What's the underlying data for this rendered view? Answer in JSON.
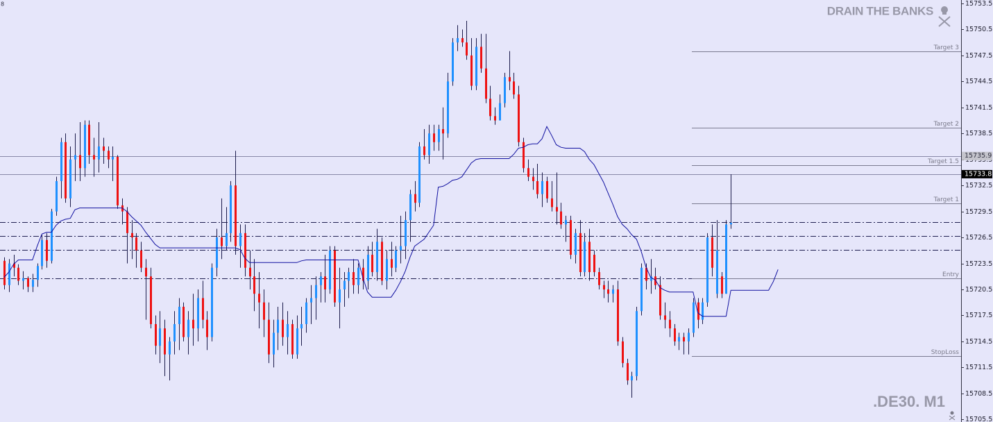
{
  "chart_data": {
    "type": "candlestick",
    "corner_label": "8",
    "watermark": "DRAIN THE BANKS",
    "symbol": ".DE30. M1",
    "ylim": [
      15705.2,
      15753.9
    ],
    "yticks": [
      15753.5,
      15750.5,
      15747.5,
      15744.5,
      15741.5,
      15738.5,
      15735.5,
      15732.5,
      15729.5,
      15726.5,
      15723.5,
      15720.5,
      15717.5,
      15714.5,
      15711.5,
      15708.5,
      15705.5
    ],
    "up_color": "#1e90ff",
    "down_color": "#ee1111",
    "wick_color": "#1a1a4a",
    "ohlc": [
      [
        15723.8,
        15724.2,
        15720.5,
        15721.0
      ],
      [
        15721.0,
        15724.0,
        15720.2,
        15723.5
      ],
      [
        15723.5,
        15724.5,
        15722.0,
        15723.0
      ],
      [
        15723.0,
        15723.4,
        15721.0,
        15721.5
      ],
      [
        15721.5,
        15722.6,
        15720.5,
        15721.8
      ],
      [
        15721.8,
        15722.0,
        15720.2,
        15720.8
      ],
      [
        15720.8,
        15722.3,
        15720.2,
        15721.6
      ],
      [
        15721.6,
        15723.5,
        15720.8,
        15723.2
      ],
      [
        15723.2,
        15726.8,
        15722.8,
        15726.2
      ],
      [
        15726.2,
        15727.0,
        15723.0,
        15723.8
      ],
      [
        15723.8,
        15729.8,
        15723.5,
        15729.5
      ],
      [
        15729.5,
        15733.5,
        15729.0,
        15733.0
      ],
      [
        15733.0,
        15738.0,
        15731.0,
        15737.5
      ],
      [
        15737.5,
        15738.5,
        15730.5,
        15731.0
      ],
      [
        15731.0,
        15737.0,
        15730.0,
        15735.5
      ],
      [
        15735.5,
        15738.5,
        15733.0,
        15736.0
      ],
      [
        15736.0,
        15739.8,
        15733.0,
        15734.5
      ],
      [
        15734.5,
        15740.0,
        15733.5,
        15739.5
      ],
      [
        15739.5,
        15740.0,
        15735.0,
        15736.0
      ],
      [
        15736.0,
        15738.0,
        15733.5,
        15735.5
      ],
      [
        15735.5,
        15739.8,
        15734.0,
        15737.0
      ],
      [
        15737.0,
        15738.0,
        15735.0,
        15736.5
      ],
      [
        15736.5,
        15737.0,
        15734.5,
        15735.5
      ],
      [
        15735.5,
        15737.0,
        15733.0,
        15735.8
      ],
      [
        15735.8,
        15736.0,
        15729.8,
        15730.2
      ],
      [
        15730.2,
        15731.0,
        15728.0,
        15729.5
      ],
      [
        15729.5,
        15730.0,
        15723.5,
        15727.0
      ],
      [
        15727.0,
        15728.5,
        15724.0,
        15726.5
      ],
      [
        15726.5,
        15727.0,
        15723.0,
        15725.0
      ],
      [
        15725.0,
        15726.0,
        15722.5,
        15723.0
      ],
      [
        15723.0,
        15724.0,
        15717.0,
        15722.0
      ],
      [
        15722.0,
        15723.0,
        15716.0,
        15716.5
      ],
      [
        15716.5,
        15717.5,
        15713.0,
        15714.0
      ],
      [
        15714.0,
        15718.0,
        15712.0,
        15716.0
      ],
      [
        15716.0,
        15717.0,
        15710.5,
        15713.0
      ],
      [
        15713.0,
        15715.0,
        15710.0,
        15714.5
      ],
      [
        15714.5,
        15718.0,
        15713.0,
        15716.5
      ],
      [
        15716.5,
        15719.5,
        15713.5,
        15718.5
      ],
      [
        15718.5,
        15719.0,
        15714.5,
        15715.0
      ],
      [
        15715.0,
        15718.0,
        15713.0,
        15717.0
      ],
      [
        15717.0,
        15720.0,
        15714.0,
        15716.0
      ],
      [
        15716.0,
        15720.5,
        15714.5,
        15719.5
      ],
      [
        15719.5,
        15721.5,
        15716.0,
        15717.0
      ],
      [
        15717.0,
        15718.0,
        15713.5,
        15715.0
      ],
      [
        15715.0,
        15723.5,
        15714.5,
        15723.0
      ],
      [
        15723.0,
        15727.5,
        15722.0,
        15726.5
      ],
      [
        15726.5,
        15731.0,
        15724.0,
        15725.5
      ],
      [
        15725.5,
        15730.0,
        15725.0,
        15727.0
      ],
      [
        15727.0,
        15733.0,
        15726.0,
        15732.5
      ],
      [
        15732.5,
        15736.5,
        15724.5,
        15725.5
      ],
      [
        15725.5,
        15728.0,
        15723.0,
        15727.0
      ],
      [
        15727.0,
        15728.0,
        15722.0,
        15723.0
      ],
      [
        15723.0,
        15725.0,
        15720.5,
        15722.0
      ],
      [
        15722.0,
        15724.0,
        15718.0,
        15720.0
      ],
      [
        15720.0,
        15722.5,
        15716.0,
        15719.0
      ],
      [
        15719.0,
        15720.5,
        15715.0,
        15717.0
      ],
      [
        15717.0,
        15719.0,
        15712.0,
        15713.0
      ],
      [
        15713.0,
        15717.0,
        15711.5,
        15715.5
      ],
      [
        15715.5,
        15718.5,
        15713.5,
        15717.0
      ],
      [
        15717.0,
        15719.0,
        15714.0,
        15715.0
      ],
      [
        15715.0,
        15718.0,
        15713.0,
        15716.5
      ],
      [
        15716.5,
        15717.0,
        15712.5,
        15713.0
      ],
      [
        15713.0,
        15717.5,
        15712.5,
        15716.0
      ],
      [
        15716.0,
        15718.5,
        15714.0,
        15716.5
      ],
      [
        15716.5,
        15719.5,
        15715.5,
        15719.0
      ],
      [
        15719.0,
        15721.0,
        15716.5,
        15719.5
      ],
      [
        15719.5,
        15722.0,
        15717.0,
        15721.0
      ],
      [
        15721.0,
        15722.5,
        15719.0,
        15722.0
      ],
      [
        15722.0,
        15724.5,
        15719.0,
        15720.5
      ],
      [
        15720.5,
        15725.5,
        15720.0,
        15725.0
      ],
      [
        15725.0,
        15725.5,
        15718.5,
        15719.0
      ],
      [
        15719.0,
        15723.0,
        15716.0,
        15720.5
      ],
      [
        15720.5,
        15722.5,
        15718.5,
        15721.5
      ],
      [
        15721.5,
        15723.0,
        15719.5,
        15722.5
      ],
      [
        15722.5,
        15724.0,
        15720.0,
        15721.0
      ],
      [
        15721.0,
        15723.5,
        15720.0,
        15723.0
      ],
      [
        15723.0,
        15724.0,
        15720.5,
        15721.5
      ],
      [
        15721.5,
        15725.5,
        15720.5,
        15724.5
      ],
      [
        15724.5,
        15726.0,
        15722.0,
        15722.5
      ],
      [
        15722.5,
        15727.5,
        15721.5,
        15726.0
      ],
      [
        15726.0,
        15726.5,
        15721.0,
        15721.5
      ],
      [
        15721.5,
        15725.0,
        15720.5,
        15724.0
      ],
      [
        15724.0,
        15726.0,
        15722.0,
        15723.0
      ],
      [
        15723.0,
        15725.5,
        15722.5,
        15725.0
      ],
      [
        15725.0,
        15729.0,
        15723.5,
        15725.5
      ],
      [
        15725.5,
        15729.5,
        15724.0,
        15728.5
      ],
      [
        15728.5,
        15732.0,
        15726.0,
        15731.5
      ],
      [
        15731.5,
        15733.0,
        15729.5,
        15730.5
      ],
      [
        15730.5,
        15737.5,
        15730.0,
        15737.0
      ],
      [
        15737.0,
        15739.0,
        15735.5,
        15736.0
      ],
      [
        15736.0,
        15739.5,
        15735.0,
        15738.5
      ],
      [
        15738.5,
        15739.5,
        15736.5,
        15737.5
      ],
      [
        15737.5,
        15739.5,
        15736.5,
        15739.0
      ],
      [
        15739.0,
        15741.5,
        15735.5,
        15738.5
      ],
      [
        15738.5,
        15745.5,
        15738.0,
        15744.5
      ],
      [
        15744.5,
        15749.5,
        15744.0,
        15749.0
      ],
      [
        15749.0,
        15751.0,
        15748.0,
        15749.5
      ],
      [
        15749.5,
        15750.5,
        15748.5,
        15749.0
      ],
      [
        15749.0,
        15751.5,
        15747.0,
        15747.5
      ],
      [
        15747.5,
        15749.5,
        15743.5,
        15744.0
      ],
      [
        15744.0,
        15749.5,
        15743.5,
        15748.5
      ],
      [
        15748.5,
        15750.0,
        15745.5,
        15746.0
      ],
      [
        15746.0,
        15750.0,
        15742.0,
        15742.5
      ],
      [
        15742.5,
        15744.0,
        15740.0,
        15740.5
      ],
      [
        15740.5,
        15741.5,
        15739.5,
        15740.0
      ],
      [
        15740.0,
        15743.0,
        15740.0,
        15742.0
      ],
      [
        15742.0,
        15745.5,
        15741.5,
        15745.0
      ],
      [
        15745.0,
        15748.0,
        15743.5,
        15744.5
      ],
      [
        15744.5,
        15745.5,
        15742.5,
        15743.0
      ],
      [
        15743.0,
        15744.0,
        15737.0,
        15737.5
      ],
      [
        15737.5,
        15738.0,
        15734.0,
        15734.5
      ],
      [
        15734.5,
        15735.5,
        15733.0,
        15733.5
      ],
      [
        15733.5,
        15734.5,
        15732.0,
        15733.0
      ],
      [
        15733.0,
        15735.0,
        15731.0,
        15731.5
      ],
      [
        15731.5,
        15734.0,
        15730.0,
        15733.0
      ],
      [
        15733.0,
        15733.5,
        15730.5,
        15731.0
      ],
      [
        15731.0,
        15733.0,
        15729.5,
        15730.0
      ],
      [
        15730.0,
        15734.0,
        15728.0,
        15729.5
      ],
      [
        15729.5,
        15730.5,
        15727.5,
        15728.0
      ],
      [
        15728.0,
        15729.0,
        15726.0,
        15728.5
      ],
      [
        15728.5,
        15729.0,
        15724.0,
        15724.5
      ],
      [
        15724.5,
        15727.5,
        15723.5,
        15727.0
      ],
      [
        15727.0,
        15728.5,
        15722.0,
        15722.5
      ],
      [
        15722.5,
        15727.0,
        15722.0,
        15726.0
      ],
      [
        15726.0,
        15727.5,
        15721.5,
        15722.5
      ],
      [
        15724.5,
        15725.0,
        15722.0,
        15722.5
      ],
      [
        15722.5,
        15723.0,
        15720.5,
        15721.0
      ],
      [
        15721.0,
        15721.5,
        15719.5,
        15720.5
      ],
      [
        15720.5,
        15721.5,
        15719.0,
        15720.0
      ],
      [
        15720.0,
        15721.0,
        15719.0,
        15720.5
      ],
      [
        15720.5,
        15721.5,
        15714.0,
        15714.5
      ],
      [
        15714.5,
        15715.0,
        15711.5,
        15712.0
      ],
      [
        15712.0,
        15712.5,
        15709.5,
        15710.0
      ],
      [
        15710.0,
        15711.0,
        15708.0,
        15710.5
      ],
      [
        15710.5,
        15718.5,
        15710.0,
        15718.0
      ],
      [
        15718.0,
        15723.5,
        15717.5,
        15723.0
      ],
      [
        15723.0,
        15723.5,
        15720.5,
        15721.5
      ],
      [
        15721.5,
        15724.0,
        15720.0,
        15722.0
      ],
      [
        15722.0,
        15723.0,
        15720.5,
        15721.0
      ],
      [
        15721.0,
        15722.0,
        15717.0,
        15717.5
      ],
      [
        15717.5,
        15719.0,
        15716.0,
        15717.0
      ],
      [
        15717.0,
        15718.0,
        15715.0,
        15716.0
      ],
      [
        15716.0,
        15716.5,
        15714.0,
        15714.5
      ],
      [
        15714.5,
        15715.5,
        15713.5,
        15715.0
      ],
      [
        15715.0,
        15715.5,
        15713.0,
        15714.5
      ],
      [
        15714.5,
        15716.0,
        15713.0,
        15715.5
      ],
      [
        15715.5,
        15719.5,
        15715.0,
        15719.0
      ],
      [
        15719.0,
        15719.5,
        15716.0,
        15717.0
      ],
      [
        15717.0,
        15719.5,
        15716.5,
        15719.0
      ],
      [
        15719.0,
        15727.0,
        15718.5,
        15726.5
      ],
      [
        15726.5,
        15728.0,
        15722.0,
        15723.0
      ],
      [
        15720.0,
        15728.5,
        15719.5,
        15725.0
      ],
      [
        15722.0,
        15722.5,
        15719.5,
        15720.0
      ],
      [
        15720.0,
        15728.5,
        15720.0,
        15728.0
      ],
      [
        15728.0,
        15733.8,
        15727.5,
        15728.2
      ]
    ],
    "line": {
      "color": "#1010a0",
      "values": [
        15721.9,
        15722.5,
        15723.4,
        15723.9,
        15723.9,
        15723.9,
        15723.9,
        15725.5,
        15726.9,
        15727.1,
        15727.1,
        15727.9,
        15728.4,
        15728.6,
        15728.7,
        15729.7,
        15729.9,
        15729.9,
        15729.9,
        15729.9,
        15729.9,
        15729.9,
        15729.9,
        15729.9,
        15729.9,
        15729.9,
        15729.5,
        15728.9,
        15728.4,
        15727.9,
        15727.1,
        15726.4,
        15725.7,
        15725.3,
        15725.3,
        15725.3,
        15725.3,
        15725.3,
        15725.3,
        15725.3,
        15725.3,
        15725.3,
        15725.3,
        15725.3,
        15725.3,
        15725.3,
        15725.3,
        15725.3,
        15725.3,
        15725.3,
        15725.1,
        15724.1,
        15723.6,
        15723.6,
        15723.6,
        15723.6,
        15723.6,
        15723.6,
        15723.6,
        15723.6,
        15723.6,
        15723.6,
        15723.6,
        15723.8,
        15723.9,
        15723.9,
        15723.9,
        15723.9,
        15723.9,
        15723.9,
        15723.9,
        15723.9,
        15723.9,
        15723.9,
        15723.9,
        15723.9,
        15721.9,
        15720.2,
        15719.6,
        15719.6,
        15719.6,
        15719.6,
        15719.6,
        15720.4,
        15721.4,
        15722.6,
        15724.2,
        15725.5,
        15725.9,
        15726.3,
        15727.1,
        15727.9,
        15732.3,
        15732.4,
        15732.7,
        15733.1,
        15733.2,
        15733.5,
        15734.3,
        15735.1,
        15735.5,
        15735.6,
        15735.6,
        15735.6,
        15735.6,
        15735.6,
        15735.6,
        15735.6,
        15736.1,
        15736.8,
        15736.9,
        15737.2,
        15737.3,
        15737.3,
        15737.9,
        15739.3,
        15738.3,
        15737.2,
        15736.9,
        15736.8,
        15736.8,
        15736.8,
        15736.8,
        15736.4,
        15735.5,
        15734.9,
        15733.9,
        15732.9,
        15731.6,
        15730.3,
        15728.9,
        15728.0,
        15727.5,
        15726.8,
        15726.3,
        15724.9,
        15723.1,
        15721.9,
        15721.6,
        15720.7,
        15720.4,
        15720.2,
        15720.2,
        15720.2,
        15720.2,
        15720.2,
        15720.2,
        15717.8,
        15717.4,
        15717.4,
        15717.4,
        15717.4,
        15717.4,
        15717.4,
        15720.4,
        15720.4,
        15720.4,
        15720.4,
        15720.4,
        15720.4,
        15720.4,
        15720.4,
        15720.4,
        15721.4,
        15722.8
      ]
    },
    "levels": [
      {
        "label": "Target 3",
        "value": 15748.0
      },
      {
        "label": "Target 2",
        "value": 15739.2
      },
      {
        "label": "Target 1.5",
        "value": 15734.8
      },
      {
        "label": "Target 1",
        "value": 15730.4
      },
      {
        "label": "Entry",
        "value": 15721.8
      },
      {
        "label": "StopLoss",
        "value": 15712.8
      }
    ],
    "level_color": "#7a7a90",
    "dash_levels": [
      15728.3,
      15726.7,
      15725.1,
      15721.8
    ],
    "dash_color": "#1e1e50",
    "price_markers": [
      {
        "value": 15735.9,
        "background": "#c4c4cc",
        "color": "#303040"
      },
      {
        "value": 15733.8,
        "background": "#000000",
        "color": "#ffffff"
      }
    ]
  }
}
